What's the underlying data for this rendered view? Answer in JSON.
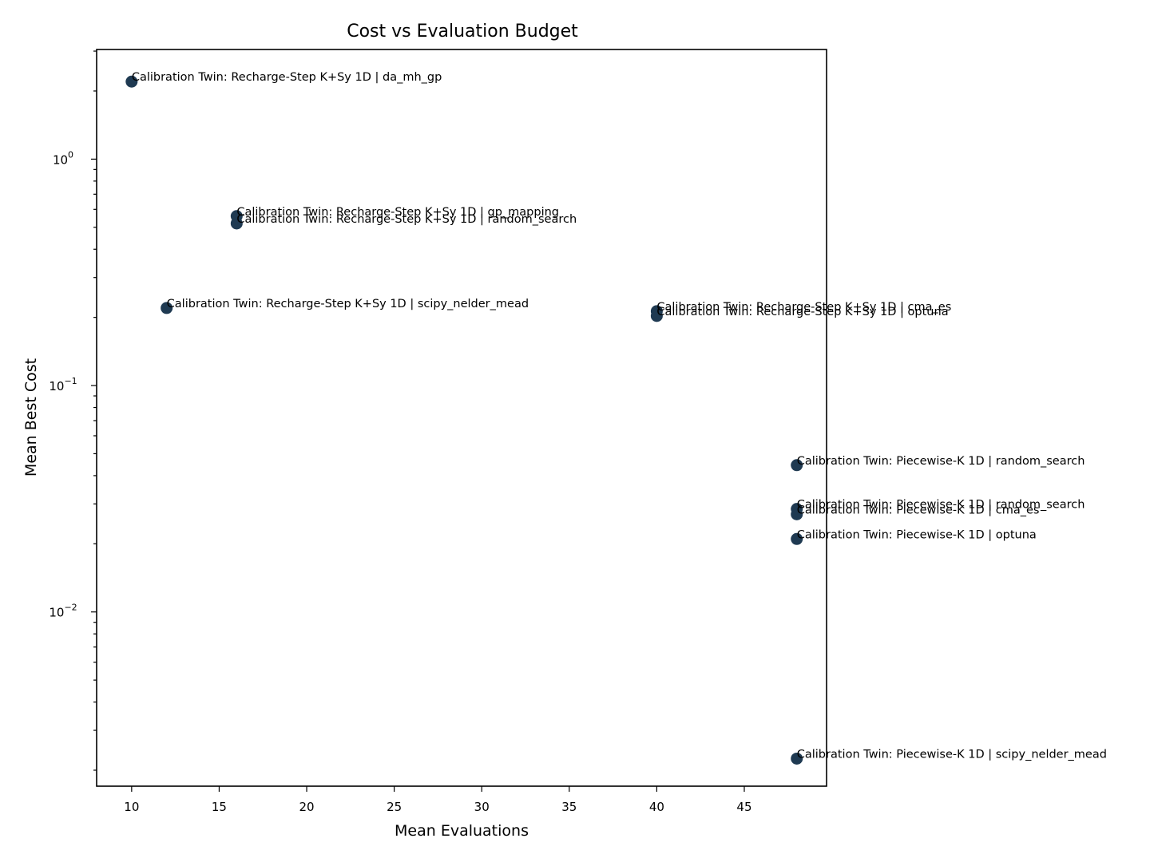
{
  "chart_data": {
    "type": "scatter",
    "title": "Cost vs Evaluation Budget",
    "xlabel": "Mean Evaluations",
    "ylabel": "Mean Best Cost",
    "xlim": [
      8.0,
      49.7
    ],
    "ylim": [
      0.0017,
      3.05
    ],
    "yscale": "log",
    "grid": false,
    "legend": "none",
    "marker_color": "#1f3a52",
    "x_ticks": [
      10,
      15,
      20,
      25,
      30,
      35,
      40,
      45
    ],
    "x_tick_labels": [
      "10",
      "15",
      "20",
      "25",
      "30",
      "35",
      "40",
      "45"
    ],
    "y_ticks": [
      {
        "value": 1,
        "base": "10",
        "exp": "0"
      },
      {
        "value": 0.1,
        "base": "10",
        "exp": "−1"
      },
      {
        "value": 0.01,
        "base": "10",
        "exp": "−2"
      }
    ],
    "points": [
      {
        "x": 10,
        "y": 2.2,
        "label": "Calibration Twin: Recharge-Step K+Sy 1D | da_mh_gp"
      },
      {
        "x": 16,
        "y": 0.56,
        "label": "Calibration Twin: Recharge-Step K+Sy 1D | gp_mapping"
      },
      {
        "x": 16,
        "y": 0.52,
        "label": "Calibration Twin: Recharge-Step K+Sy 1D | random_search"
      },
      {
        "x": 12,
        "y": 0.22,
        "label": "Calibration Twin: Recharge-Step K+Sy 1D | scipy_nelder_mead"
      },
      {
        "x": 40,
        "y": 0.213,
        "label": "Calibration Twin: Recharge-Step K+Sy 1D | cma_es"
      },
      {
        "x": 40,
        "y": 0.203,
        "label": "Calibration Twin: Recharge-Step K+Sy 1D | optuna"
      },
      {
        "x": 48,
        "y": 0.0445,
        "label": "Calibration Twin: Piecewise-K 1D | random_search"
      },
      {
        "x": 48,
        "y": 0.0285,
        "label": "Calibration Twin: Piecewise-K 1D | random_search"
      },
      {
        "x": 48,
        "y": 0.027,
        "label": "Calibration Twin: Piecewise-K 1D | cma_es"
      },
      {
        "x": 48,
        "y": 0.021,
        "label": "Calibration Twin: Piecewise-K 1D | optuna"
      },
      {
        "x": 48,
        "y": 0.00225,
        "label": "Calibration Twin: Piecewise-K 1D | scipy_nelder_mead"
      }
    ]
  }
}
